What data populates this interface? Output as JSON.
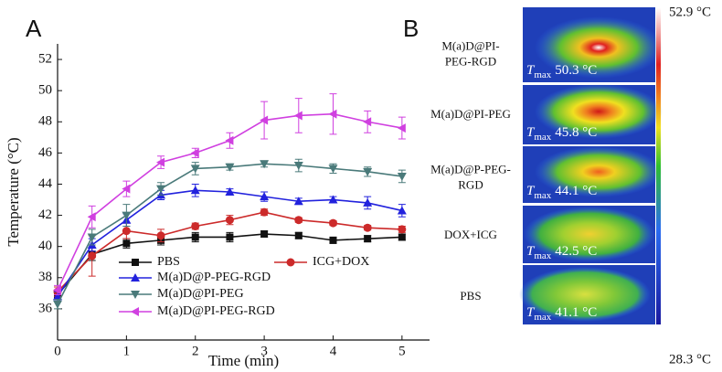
{
  "chart_data": {
    "type": "line",
    "panel_label": "A",
    "x_label": "Time (min)",
    "y_label": "Temperature (°C)",
    "x": [
      0,
      0.5,
      1,
      1.5,
      2,
      2.5,
      3,
      3.5,
      4,
      4.5,
      5
    ],
    "xlim": [
      0,
      5.4
    ],
    "xticks": [
      0,
      1,
      2,
      3,
      4,
      5
    ],
    "ylim": [
      34,
      53
    ],
    "yticks": [
      36,
      38,
      40,
      42,
      44,
      46,
      48,
      50,
      52
    ],
    "series": [
      {
        "name": "PBS",
        "color": "#111111",
        "marker": "square",
        "values": [
          36.9,
          39.5,
          40.2,
          40.4,
          40.6,
          40.6,
          40.8,
          40.7,
          40.4,
          40.5,
          40.6
        ],
        "errors": [
          0.3,
          0.4,
          0.3,
          0.3,
          0.3,
          0.3,
          0.2,
          0.2,
          0.2,
          0.2,
          0.2
        ]
      },
      {
        "name": "ICG+DOX",
        "color": "#cc2a2a",
        "marker": "circle",
        "values": [
          37.1,
          39.4,
          41.0,
          40.7,
          41.3,
          41.7,
          42.2,
          41.7,
          41.5,
          41.2,
          41.1
        ],
        "errors": [
          0.3,
          1.3,
          0.5,
          0.4,
          0.2,
          0.3,
          0.2,
          0.15,
          0.15,
          0.15,
          0.2
        ]
      },
      {
        "name": "M(a)D@P-PEG-RGD",
        "color": "#2222dd",
        "marker": "triangle-up",
        "values": [
          36.8,
          40.1,
          41.7,
          43.3,
          43.6,
          43.5,
          43.2,
          42.9,
          43.0,
          42.8,
          42.3
        ],
        "errors": [
          0.3,
          0.4,
          0.4,
          0.3,
          0.4,
          0.2,
          0.3,
          0.2,
          0.2,
          0.4,
          0.4
        ]
      },
      {
        "name": "M(a)D@PI-PEG",
        "color": "#4a7a7a",
        "marker": "triangle-down",
        "values": [
          36.3,
          40.6,
          42.0,
          43.7,
          45.0,
          45.1,
          45.3,
          45.2,
          45.0,
          44.8,
          44.5
        ],
        "errors": [
          0.3,
          0.5,
          0.7,
          0.4,
          0.4,
          0.2,
          0.2,
          0.4,
          0.3,
          0.3,
          0.4
        ]
      },
      {
        "name": "M(a)D@PI-PEG-RGD",
        "color": "#d040e0",
        "marker": "triangle-left",
        "values": [
          37.2,
          41.9,
          43.7,
          45.4,
          46.0,
          46.8,
          48.1,
          48.4,
          48.5,
          48.0,
          47.6
        ],
        "errors": [
          0.3,
          0.7,
          0.5,
          0.4,
          0.3,
          0.5,
          1.2,
          1.1,
          1.3,
          0.7,
          0.7
        ]
      }
    ]
  },
  "panel_b": {
    "panel_label": "B",
    "tmax_symbol": "T",
    "tmax_subscript": "max",
    "scale_max": "52.9 °C",
    "scale_min": "28.3 °C",
    "rows": [
      {
        "label": [
          "M(a)D@PI-",
          "PEG-RGD"
        ],
        "tmax": "50.3 °C"
      },
      {
        "label": [
          "M(a)D@PI-PEG"
        ],
        "tmax": "45.8 °C"
      },
      {
        "label": [
          "M(a)D@P-PEG-",
          "RGD"
        ],
        "tmax": "44.1 °C"
      },
      {
        "label": [
          "DOX+ICG"
        ],
        "tmax": "42.5 °C"
      },
      {
        "label": [
          "PBS"
        ],
        "tmax": "41.1 °C"
      }
    ]
  }
}
